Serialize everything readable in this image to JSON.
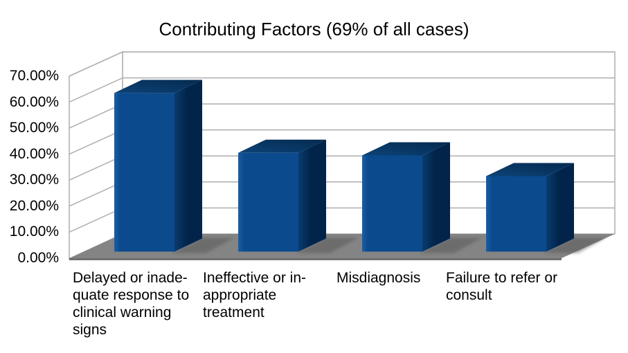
{
  "title": "Contributing Factors (69% of all cases)",
  "chart_data": {
    "type": "bar",
    "style": "3d-column",
    "title": "Contributing Factors (69% of all cases)",
    "categories": [
      "Delayed or inadequate response to clinical warning signs",
      "Ineffective or inappropriate treatment",
      "Misdiagnosis",
      "Failure to refer or consult"
    ],
    "category_display_lines": [
      [
        "Delayed or inade-",
        "quate response to",
        "clinical warning",
        "signs"
      ],
      [
        "Ineffective or in-",
        "appropriate",
        "treatment"
      ],
      [
        "Misdiagnosis"
      ],
      [
        "Failure to refer or",
        "consult"
      ]
    ],
    "values": [
      61,
      38,
      37,
      29
    ],
    "unit": "%",
    "ylabel": "",
    "xlabel": "",
    "ylim": [
      0,
      70
    ],
    "y_tick_step": 10,
    "y_ticks": [
      "70.00%",
      "60.00%",
      "50.00%",
      "40.00%",
      "30.00%",
      "20.00%",
      "10.00%",
      "0.00%"
    ],
    "grid": true,
    "legend": false,
    "colors": {
      "bar_front": "#0b4a8c",
      "bar_front_light": "#1b5ea6",
      "bar_side_dark": "#02244a",
      "bar_side": "#0a3c6e",
      "bar_top_light": "#0d4377",
      "bar_top_dark": "#042a50",
      "floor": "#848484",
      "shadow": "#5a5a5a",
      "gridline": "#b3b3b3",
      "wall_border": "#b3b3b3",
      "wall_fill": "#ffffff",
      "text": "#000000",
      "background": "#ffffff"
    }
  }
}
